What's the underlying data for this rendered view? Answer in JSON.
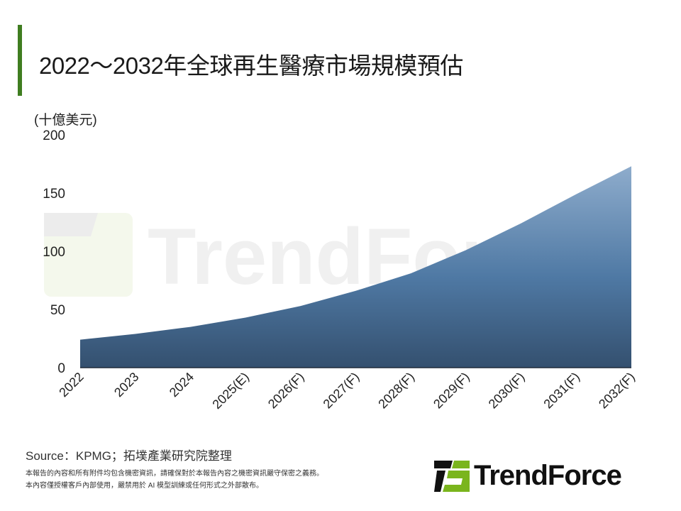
{
  "header": {
    "title": "2022～2032年全球再生醫療市場規模預估"
  },
  "chart_data": {
    "type": "area",
    "title": "2022～2032年全球再生醫療市場規模預估",
    "ylabel": "(十億美元)",
    "xlabel": "",
    "categories": [
      "2022",
      "2023",
      "2024",
      "2025(E)",
      "2026(F)",
      "2027(F)",
      "2028(F)",
      "2029(F)",
      "2030(F)",
      "2031(F)",
      "2032(F)"
    ],
    "values": [
      24,
      29,
      35,
      43,
      53,
      66,
      81,
      101,
      124,
      149,
      173
    ],
    "ylim": [
      0,
      200
    ],
    "yticks": [
      "0",
      "50",
      "100",
      "150",
      "200"
    ],
    "grid": false,
    "fill_top_color": "#8eaccc",
    "fill_bottom_color": "#34506f"
  },
  "footer": {
    "source": "Source：KPMG；拓墣產業研究院整理",
    "note_line1": "本報告的內容和所有附件均包含機密資訊，請確保對於本報告內容之機密資訊嚴守保密之義務。",
    "note_line2": "本內容僅授權客戶內部使用，嚴禁用於 AI 模型訓練或任何形式之外部散布。"
  },
  "logo": {
    "text": "TrendForce",
    "watermark": "TrendForce"
  },
  "colors": {
    "accent": "#3f7d20",
    "logo_green": "#7ab51d"
  }
}
